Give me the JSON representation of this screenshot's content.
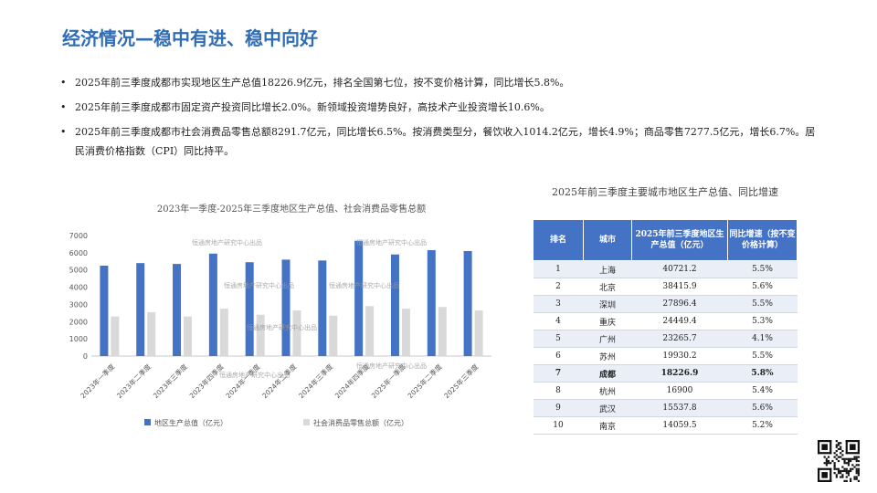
{
  "title": "经济情况—稳中有进、稳中向好",
  "bullets": [
    "2025年前三季度成都市实现地区生产总值18226.9亿元，排名全国第七位，按不变价格计算，同比增长5.8%。",
    "2025年前三季度成都市固定资产投资同比增长2.0%。新领域投资增势良好，高技术产业投资增长10.6%。",
    "2025年前三季度成都市社会消费品零售总额8291.7亿元，同比增长6.5%。按消费类型分，餐饮收入1014.2亿元，增长4.9%；商品零售7277.5亿元，增长6.7%。居民消费价格指数（CPI）同比持平。"
  ],
  "watermark": "恒通房地产研究中心出品",
  "table": {
    "title": "2025年前三季度主要城市地区生产总值、同比增速",
    "headers": [
      "排名",
      "城市",
      "2025年前三季度地区生产总值（亿元）",
      "同比增速（按不变价格计算）"
    ],
    "rows": [
      [
        "1",
        "上海",
        "40721.2",
        "5.5%"
      ],
      [
        "2",
        "北京",
        "38415.9",
        "5.6%"
      ],
      [
        "3",
        "深圳",
        "27896.4",
        "5.5%"
      ],
      [
        "4",
        "重庆",
        "24449.4",
        "5.3%"
      ],
      [
        "5",
        "广州",
        "23265.7",
        "4.1%"
      ],
      [
        "6",
        "苏州",
        "19930.2",
        "5.5%"
      ],
      [
        "7",
        "成都",
        "18226.9",
        "5.8%"
      ],
      [
        "8",
        "杭州",
        "16900",
        "5.4%"
      ],
      [
        "9",
        "武汉",
        "15537.8",
        "5.6%"
      ],
      [
        "10",
        "南京",
        "14059.5",
        "5.2%"
      ]
    ],
    "highlight_row": 6,
    "header_color": "#4472c4"
  },
  "chart_data": {
    "type": "bar",
    "title": "2023年一季度-2025年三季度地区生产总值、社会消费品零售总额",
    "categories": [
      "2023年一季度",
      "2023年二季度",
      "2023年三季度",
      "2023年四季度",
      "2024年一季度",
      "2024年二季度",
      "2024年三季度",
      "2024年四季度",
      "2025年一季度",
      "2025年二季度",
      "2025年三季度"
    ],
    "series": [
      {
        "name": "地区生产总值（亿元）",
        "color": "#4472c4",
        "values": [
          5250,
          5400,
          5350,
          5950,
          5450,
          5600,
          5550,
          6700,
          5900,
          6150,
          6100
        ]
      },
      {
        "name": "社会消费品零售总额（亿元）",
        "color": "#d9d9d9",
        "values": [
          2300,
          2550,
          2300,
          2750,
          2400,
          2650,
          2350,
          2900,
          2750,
          2850,
          2650
        ]
      }
    ],
    "ylim": [
      0,
      7000
    ],
    "yticks": [
      0,
      1000,
      2000,
      3000,
      4000,
      5000,
      6000,
      7000
    ],
    "legend": "bottom",
    "grid": false
  }
}
